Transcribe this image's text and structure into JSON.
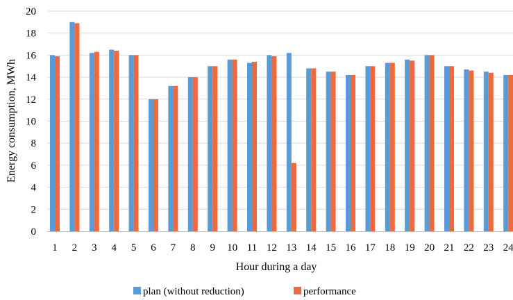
{
  "chart_data": {
    "type": "bar",
    "title": "",
    "xlabel": "Hour during a day",
    "ylabel": "Energy consumption, MWh",
    "ylim": [
      0,
      20
    ],
    "yticks": [
      0,
      2,
      4,
      6,
      8,
      10,
      12,
      14,
      16,
      18,
      20
    ],
    "grid": true,
    "legend_position": "bottom",
    "categories": [
      "1",
      "2",
      "3",
      "4",
      "5",
      "6",
      "7",
      "8",
      "9",
      "10",
      "11",
      "12",
      "13",
      "14",
      "15",
      "16",
      "17",
      "18",
      "19",
      "20",
      "21",
      "22",
      "23",
      "24"
    ],
    "series": [
      {
        "name": "plan (without reduction)",
        "color": "#5b9bd5",
        "values": [
          16.0,
          19.0,
          16.2,
          16.5,
          16.0,
          12.0,
          13.2,
          14.0,
          15.0,
          15.6,
          15.3,
          16.0,
          16.2,
          14.8,
          14.5,
          14.2,
          15.0,
          15.3,
          15.6,
          16.0,
          15.0,
          14.7,
          14.5,
          14.2
        ]
      },
      {
        "name": "performance",
        "color": "#ed6a3f",
        "values": [
          15.9,
          18.9,
          16.3,
          16.4,
          16.0,
          12.0,
          13.2,
          14.0,
          15.0,
          15.6,
          15.4,
          15.9,
          6.2,
          14.8,
          14.5,
          14.2,
          15.0,
          15.3,
          15.5,
          16.0,
          15.0,
          14.6,
          14.4,
          14.2
        ]
      }
    ]
  }
}
